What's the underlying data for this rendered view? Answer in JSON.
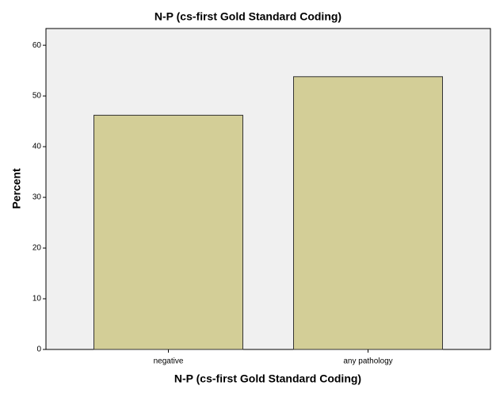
{
  "chart_data": {
    "type": "bar",
    "title": "N-P (cs-first Gold Standard Coding)",
    "x_label": "N-P (cs-first Gold Standard Coding)",
    "y_label": "Percent",
    "categories": [
      "negative",
      "any pathology"
    ],
    "values": [
      46.2,
      53.8
    ],
    "color": "#d3ce97",
    "ylim": [
      0,
      63.3
    ],
    "yticks": [
      0,
      10,
      20,
      30,
      40,
      50,
      60
    ],
    "grid": false
  }
}
